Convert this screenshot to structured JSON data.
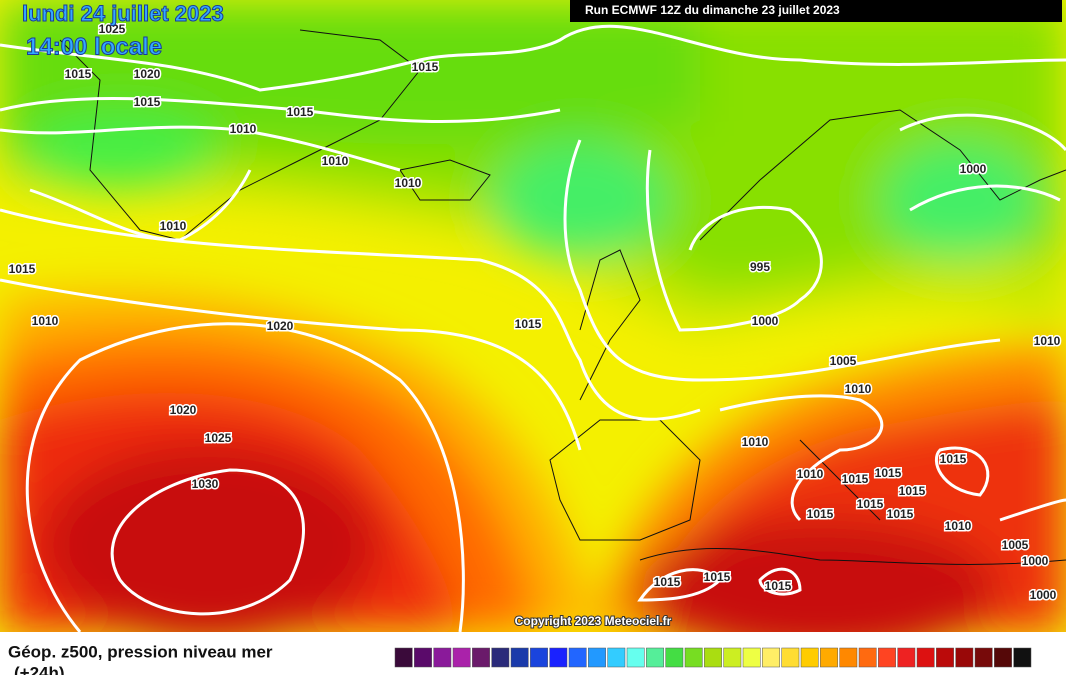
{
  "header": {
    "date": "lundi 24 juillet 2023",
    "time": "14:00 locale",
    "run": "Run ECMWF 12Z du dimanche 23 juillet 2023"
  },
  "copyright": "Copyright 2023 Meteociel.fr",
  "legend": {
    "title": "Géop. z500, pression niveau mer",
    "subtitle": "(+24h)"
  },
  "isobar_labels": [
    "1025",
    "1015",
    "1020",
    "1015",
    "1010",
    "1015",
    "1015",
    "1010",
    "1010",
    "1010",
    "1015",
    "1010",
    "1020",
    "1020",
    "1025",
    "1030",
    "1015",
    "995",
    "1000",
    "1000",
    "1005",
    "1010",
    "1010",
    "1010",
    "1010",
    "1015",
    "1015",
    "1015",
    "1015",
    "1015",
    "1015",
    "1015",
    "1010",
    "1005",
    "1000",
    "1000",
    "1015",
    "1015",
    "1015"
  ]
}
